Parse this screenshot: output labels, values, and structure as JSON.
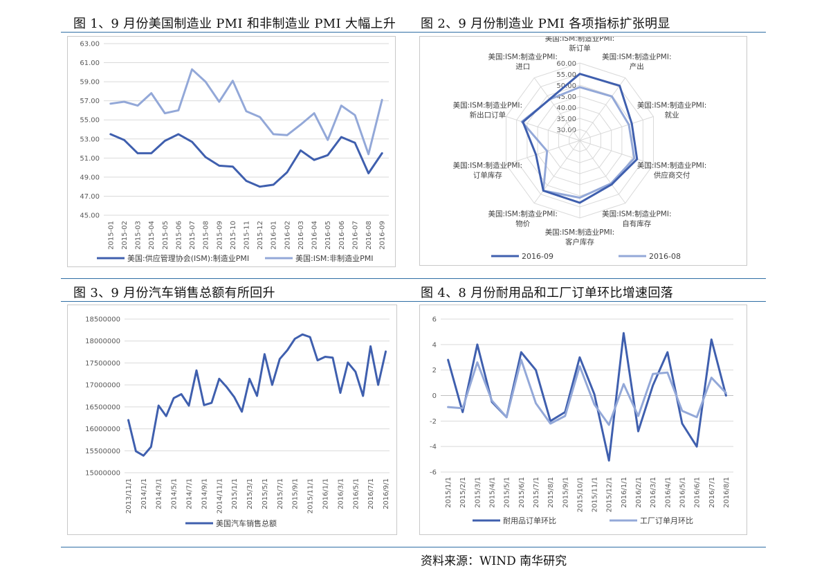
{
  "titles": {
    "fig1": "图 1、9 月份美国制造业 PMI 和非制造业 PMI 大幅上升",
    "fig2": "图 2、9 月份制造业 PMI 各项指标扩张明显",
    "fig3": "图 3、9 月份汽车销售总额有所回升",
    "fig4": "图 4、8 月份耐用品和工厂订单环比增速回落"
  },
  "source": "资料来源：WIND 南华研究",
  "colors": {
    "dark": "#3f5fae",
    "light": "#93a8d8",
    "grid": "#d9d9d9",
    "rule": "#2e6da4"
  },
  "chart_data": [
    {
      "id": "fig1",
      "type": "line",
      "categories": [
        "2015-01",
        "2015-02",
        "2015-03",
        "2015-04",
        "2015-05",
        "2015-06",
        "2015-07",
        "2015-08",
        "2015-09",
        "2015-10",
        "2015-11",
        "2015-12",
        "2016-01",
        "2016-02",
        "2016-03",
        "2016-04",
        "2016-05",
        "2016-06",
        "2016-07",
        "2016-08",
        "2016-09"
      ],
      "ylim": [
        45,
        63
      ],
      "yticks": [
        "45.00",
        "47.00",
        "49.00",
        "51.00",
        "53.00",
        "55.00",
        "57.00",
        "59.00",
        "61.00",
        "63.00"
      ],
      "series": [
        {
          "name": "美国:供应管理协会(ISM):制造业PMI",
          "color": "dark",
          "values": [
            53.5,
            52.9,
            51.5,
            51.5,
            52.8,
            53.5,
            52.7,
            51.1,
            50.2,
            50.1,
            48.6,
            48.0,
            48.2,
            49.5,
            51.8,
            50.8,
            51.3,
            53.2,
            52.6,
            49.4,
            51.5
          ]
        },
        {
          "name": "美国:ISM:非制造业PMI",
          "color": "light",
          "values": [
            56.7,
            56.9,
            56.5,
            57.8,
            55.7,
            56.0,
            60.3,
            59.0,
            56.9,
            59.1,
            55.9,
            55.3,
            53.5,
            53.4,
            54.5,
            55.7,
            52.9,
            56.5,
            55.5,
            51.4,
            57.1
          ]
        }
      ]
    },
    {
      "id": "fig2",
      "type": "radar",
      "axes": [
        {
          "line1": "美国:ISM:制造业PMI:",
          "line2": "新订单"
        },
        {
          "line1": "美国:ISM:制造业PMI:",
          "line2": "产出"
        },
        {
          "line1": "美国:ISM:制造业PMI:",
          "line2": "就业"
        },
        {
          "line1": "美国:ISM:制造业PMI:",
          "line2": "供应商交付"
        },
        {
          "line1": "美国:ISM:制造业PMI:",
          "line2": "自有库存"
        },
        {
          "line1": "美国:ISM:制造业PMI:",
          "line2": "客户库存"
        },
        {
          "line1": "美国:ISM:制造业PMI:",
          "line2": "物价"
        },
        {
          "line1": "美国:ISM:制造业PMI:",
          "line2": "订单库存"
        },
        {
          "line1": "美国:ISM:制造业PMI:",
          "line2": "新出口订单"
        },
        {
          "line1": "美国:ISM:制造业PMI:",
          "line2": "进口"
        }
      ],
      "rmin": 25,
      "rmax": 60,
      "rticks": [
        "30.00",
        "35.00",
        "40.00",
        "45.00",
        "50.00",
        "55.00",
        "60.00"
      ],
      "series": [
        {
          "name": "2016-09",
          "color": "dark",
          "values": [
            55.1,
            55.6,
            49.7,
            52.2,
            49.5,
            53.1,
            53.0,
            45.8,
            52.0,
            48.1
          ]
        },
        {
          "name": "2016-08",
          "color": "light",
          "values": [
            49.1,
            49.6,
            48.3,
            50.9,
            49.0,
            50.8,
            53.0,
            40.5,
            52.5,
            48.0
          ]
        }
      ]
    },
    {
      "id": "fig3",
      "type": "line",
      "categories": [
        "2013/11/1",
        "2013/12/1",
        "2014/1/1",
        "2014/2/1",
        "2014/3/1",
        "2014/4/1",
        "2014/5/1",
        "2014/6/1",
        "2014/7/1",
        "2014/8/1",
        "2014/9/1",
        "2014/10/1",
        "2014/11/1",
        "2014/12/1",
        "2015/1/1",
        "2015/2/1",
        "2015/3/1",
        "2015/4/1",
        "2015/5/1",
        "2015/6/1",
        "2015/7/1",
        "2015/8/1",
        "2015/9/1",
        "2015/10/1",
        "2015/11/1",
        "2015/12/1",
        "2016/1/1",
        "2016/2/1",
        "2016/3/1",
        "2016/4/1",
        "2016/5/1",
        "2016/6/1",
        "2016/7/1",
        "2016/8/1",
        "2016/9/1"
      ],
      "tickLabels": [
        "2013/11/1",
        "2014/1/1",
        "2014/3/1",
        "2014/5/1",
        "2014/7/1",
        "2014/9/1",
        "2014/11/1",
        "2015/1/1",
        "2015/3/1",
        "2015/5/1",
        "2015/7/1",
        "2015/9/1",
        "2015/11/1",
        "2016/1/1",
        "2016/3/1",
        "2016/5/1",
        "2016/7/1",
        "2016/9/1"
      ],
      "ylim": [
        15000000,
        18500000
      ],
      "yticks": [
        "15000000",
        "15500000",
        "16000000",
        "16500000",
        "17000000",
        "17500000",
        "18000000",
        "18500000"
      ],
      "series": [
        {
          "name": "美国汽车销售总额",
          "color": "dark",
          "values": [
            16200000,
            15490000,
            15390000,
            15590000,
            16530000,
            16290000,
            16700000,
            16790000,
            16530000,
            17330000,
            16540000,
            16590000,
            17140000,
            16950000,
            16720000,
            16390000,
            17140000,
            16750000,
            17700000,
            17000000,
            17590000,
            17790000,
            18050000,
            18150000,
            18090000,
            17560000,
            17640000,
            17620000,
            16820000,
            17510000,
            17300000,
            16750000,
            17880000,
            17000000,
            17760000
          ]
        }
      ]
    },
    {
      "id": "fig4",
      "type": "line",
      "categories": [
        "2015/1/1",
        "2015/2/1",
        "2015/3/1",
        "2015/4/1",
        "2015/5/1",
        "2015/6/1",
        "2015/7/1",
        "2015/8/1",
        "2015/9/1",
        "2015/10/1",
        "2015/11/1",
        "2015/12/1",
        "2016/1/1",
        "2016/2/1",
        "2016/3/1",
        "2016/4/1",
        "2016/5/1",
        "2016/6/1",
        "2016/7/1",
        "2016/8/1"
      ],
      "ylim": [
        -6,
        6
      ],
      "yticks": [
        "-6",
        "-4",
        "-2",
        "0",
        "2",
        "4",
        "6"
      ],
      "series": [
        {
          "name": "耐用品订单环比",
          "color": "dark",
          "values": [
            2.8,
            -1.3,
            4.0,
            -0.5,
            -1.7,
            3.4,
            2.0,
            -2.0,
            -1.3,
            3.0,
            0.1,
            -5.1,
            4.9,
            -2.8,
            0.8,
            3.4,
            -2.2,
            -4.0,
            4.4,
            0.0
          ]
        },
        {
          "name": "工厂订单月环比",
          "color": "light",
          "values": [
            -0.9,
            -1.0,
            2.6,
            -0.4,
            -1.7,
            2.8,
            -0.6,
            -2.2,
            -1.6,
            2.3,
            -0.7,
            -2.3,
            0.9,
            -1.6,
            1.7,
            1.8,
            -1.2,
            -1.7,
            1.4,
            0.2
          ]
        }
      ]
    }
  ]
}
